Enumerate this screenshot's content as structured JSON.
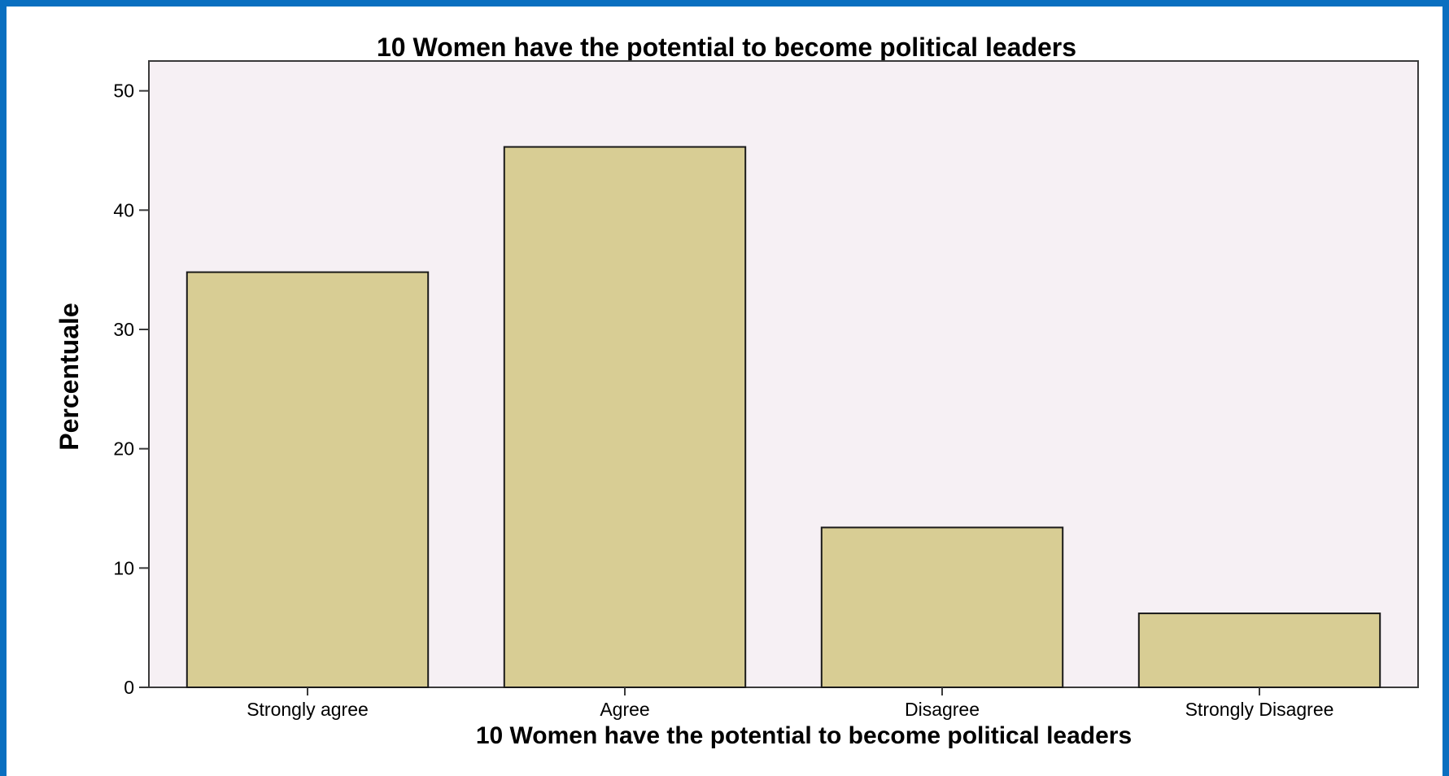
{
  "chart_data": {
    "type": "bar",
    "title": "10 Women have the potential to become political leaders",
    "xlabel": "10 Women have the potential to become political leaders",
    "ylabel": "Percentuale",
    "categories": [
      "Strongly agree",
      "Agree",
      "Disagree",
      "Strongly Disagree"
    ],
    "values": [
      34.8,
      45.3,
      13.4,
      6.2
    ],
    "ylim": [
      0,
      52.5
    ],
    "yticks": [
      "0",
      "10",
      "20",
      "30",
      "40",
      "50"
    ],
    "grid": false,
    "legend": "none",
    "colors": {
      "bar_fill": "#d8cd94",
      "bar_stroke": "#1a1a1a",
      "plot_background": "#f6f0f4",
      "outer_border": "#0a6fc0"
    }
  }
}
